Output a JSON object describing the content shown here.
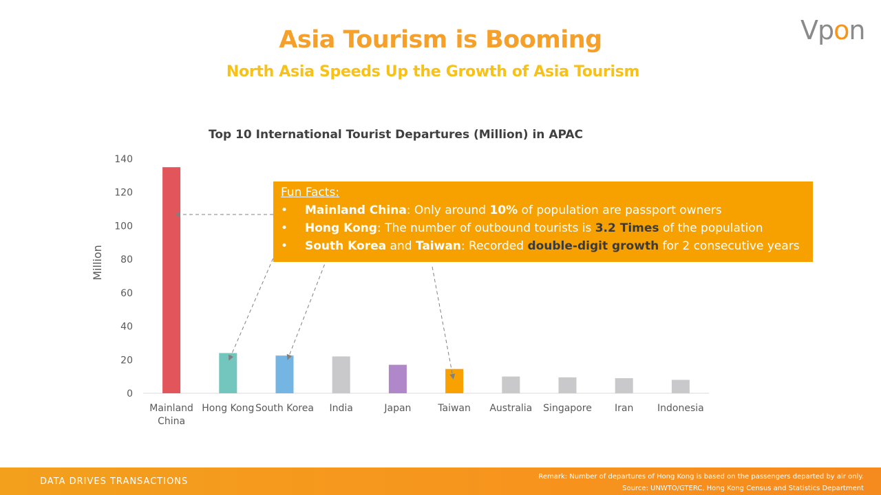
{
  "header": {
    "title": "Asia Tourism is Booming",
    "subtitle": "North Asia Speeds Up the Growth of Asia Tourism",
    "logo_text": "Vpon"
  },
  "colors": {
    "title": "#f5a02a",
    "subtitle": "#f7c117",
    "facts_box": "#f7a100",
    "footer": "#f7941d"
  },
  "chart_data": {
    "type": "bar",
    "title": "Top 10 International Tourist Departures (Million) in APAC",
    "ylabel": "Million",
    "xlabel": "",
    "ylim": [
      0,
      140
    ],
    "yticks": [
      0,
      20,
      40,
      60,
      80,
      100,
      120,
      140
    ],
    "grid": false,
    "categories": [
      "Mainland China",
      "Hong Kong",
      "South Korea",
      "India",
      "Japan",
      "Taiwan",
      "Australia",
      "Singapore",
      "Iran",
      "Indonesia"
    ],
    "category_labels": [
      [
        "Mainland",
        "China"
      ],
      [
        "Hong Kong"
      ],
      [
        "South Korea"
      ],
      [
        "India"
      ],
      [
        "Japan"
      ],
      [
        "Taiwan"
      ],
      [
        "Australia"
      ],
      [
        "Singapore"
      ],
      [
        "Iran"
      ],
      [
        "Indonesia"
      ]
    ],
    "values": [
      135,
      24,
      22.5,
      22,
      17,
      14.5,
      10,
      9.5,
      9,
      8
    ],
    "bar_colors": [
      "#e2555b",
      "#72c6bd",
      "#74b5e3",
      "#c9c9cc",
      "#b088c9",
      "#f9a100",
      "#c9c9cc",
      "#c9c9cc",
      "#c9c9cc",
      "#c9c9cc"
    ]
  },
  "fun_facts": {
    "heading": "Fun Facts:",
    "bullet": "•",
    "items": [
      {
        "strong1": "Mainland China",
        "t1": ": Only around ",
        "strong2": "10%",
        "t2": " of population are passport owners"
      },
      {
        "strong1": "Hong Kong",
        "t1": ": The number of outbound tourists is ",
        "strong2": "3.2 Times",
        "t2": " of the population"
      },
      {
        "strong1": "South Korea",
        "t1": " and ",
        "strong2": "Taiwan",
        "t2": ": Recorded ",
        "dark": "double-digit growth",
        "t3": " for 2 consecutive years"
      }
    ]
  },
  "footer": {
    "slogan": "DATA DRIVES TRANSACTIONS",
    "remark": "Remark: Number of departures of Hong Kong is based on the passengers departed by air only.",
    "source": "Source: UNWTO/GTERC,  Hong Kong Census and Statistics Department"
  }
}
